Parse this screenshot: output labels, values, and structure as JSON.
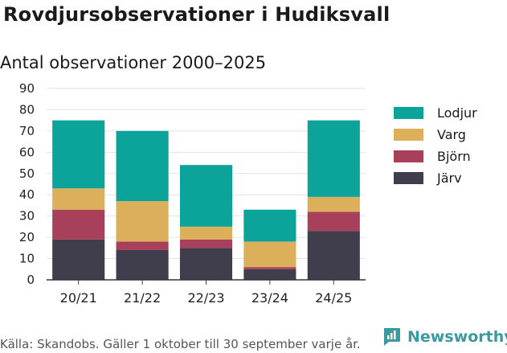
{
  "header": {
    "title": "Rovdjursobservationer i Hudiksvall",
    "subtitle": "Antal observationer 2000–2025"
  },
  "footer": {
    "source": "Källa: Skandobs. Gäller 1 oktober till 30 september varje år.",
    "brand": "Newsworthy"
  },
  "colors": {
    "Lodjur": "#0ba39a",
    "Varg": "#dcaf5a",
    "Björn": "#a83f5b",
    "Järv": "#403d4c",
    "brand": "#3a9aa0"
  },
  "chart_data": {
    "type": "bar",
    "stacked": true,
    "title": "Rovdjursobservationer i Hudiksvall",
    "subtitle": "Antal observationer 2000–2025",
    "xlabel": "",
    "ylabel": "",
    "ylim": [
      0,
      90
    ],
    "yticks": [
      0,
      10,
      20,
      30,
      40,
      50,
      60,
      70,
      80,
      90
    ],
    "grid": true,
    "legend_position": "right",
    "categories": [
      "20/21",
      "21/22",
      "22/23",
      "23/24",
      "24/25"
    ],
    "series": [
      {
        "name": "Järv",
        "values": [
          19,
          14,
          15,
          5,
          23
        ]
      },
      {
        "name": "Björn",
        "values": [
          14,
          4,
          4,
          1,
          9
        ]
      },
      {
        "name": "Varg",
        "values": [
          10,
          19,
          6,
          12,
          7
        ]
      },
      {
        "name": "Lodjur",
        "values": [
          32,
          33,
          29,
          15,
          36
        ]
      }
    ],
    "legend_order": [
      "Lodjur",
      "Varg",
      "Björn",
      "Järv"
    ]
  }
}
